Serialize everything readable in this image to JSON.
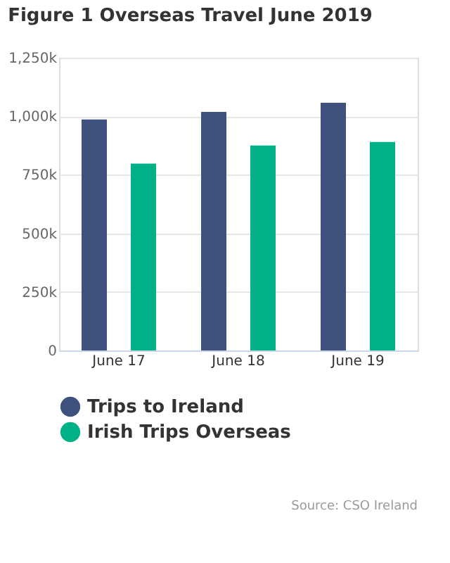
{
  "chart_data": {
    "type": "bar",
    "title": "Figure 1 Overseas Travel June 2019",
    "categories": [
      "June 17",
      "June 18",
      "June 19"
    ],
    "series": [
      {
        "name": "Trips to Ireland",
        "color": "#3f527d",
        "values": [
          986000,
          1019000,
          1058000
        ]
      },
      {
        "name": "Irish Trips Overseas",
        "color": "#00b087",
        "values": [
          798000,
          875000,
          890000
        ]
      }
    ],
    "ylim": [
      0,
      1250000
    ],
    "yticks": [
      0,
      {
        "value": 250000,
        "label": "250k"
      },
      {
        "value": 500000,
        "label": "500k"
      },
      {
        "value": 750000,
        "label": "750k"
      },
      {
        "value": 1000000,
        "label": "1,000k"
      },
      {
        "value": 1250000,
        "label": "1,250k"
      }
    ],
    "grid": "y",
    "legend": "bottom",
    "annotations": [
      "Source: CSO Ireland"
    ]
  }
}
